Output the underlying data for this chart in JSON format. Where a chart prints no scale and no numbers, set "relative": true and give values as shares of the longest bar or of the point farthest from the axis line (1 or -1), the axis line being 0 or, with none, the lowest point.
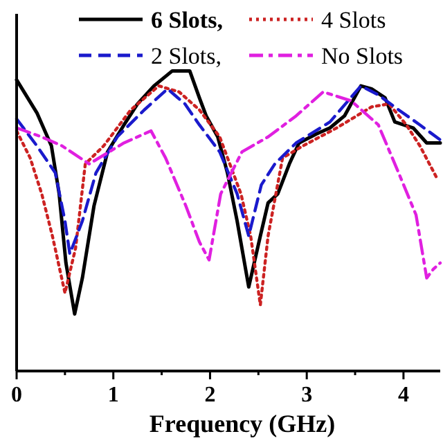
{
  "chart_data": {
    "type": "line",
    "xlabel": "Frequency (GHz)",
    "relative": true,
    "xlim": [
      0,
      4.38
    ],
    "xticks": [
      0,
      1,
      2,
      3,
      4
    ],
    "legend": "top",
    "grid": false,
    "series": [
      {
        "name": "6 Slots,",
        "color": "#000000",
        "line_style": "solid",
        "x": [
          0,
          0.21,
          0.36,
          0.44,
          0.51,
          0.6,
          0.68,
          0.8,
          0.94,
          1.11,
          1.25,
          1.42,
          1.61,
          1.79,
          1.89,
          1.96,
          2.08,
          2.18,
          2.28,
          2.4,
          2.52,
          2.6,
          2.7,
          2.82,
          2.92,
          3.1,
          3.24,
          3.39,
          3.56,
          3.67,
          3.81,
          3.91,
          4.1,
          4.24,
          4.38
        ],
        "values": [
          0.97,
          0.86,
          0.75,
          0.59,
          0.36,
          0.19,
          0.31,
          0.55,
          0.73,
          0.82,
          0.89,
          0.95,
          1.0,
          1.0,
          0.91,
          0.85,
          0.78,
          0.66,
          0.5,
          0.28,
          0.45,
          0.56,
          0.59,
          0.69,
          0.76,
          0.79,
          0.81,
          0.85,
          0.95,
          0.94,
          0.91,
          0.83,
          0.81,
          0.76,
          0.76
        ]
      },
      {
        "name": "4 Slots",
        "color": "#cc2222",
        "line_style": "dotted",
        "x": [
          0,
          0.14,
          0.26,
          0.37,
          0.5,
          0.61,
          0.71,
          0.9,
          1.18,
          1.47,
          1.68,
          1.89,
          2.1,
          2.32,
          2.42,
          2.52,
          2.6,
          2.75,
          2.96,
          3.31,
          3.67,
          3.85,
          4.03,
          4.17,
          4.35
        ],
        "values": [
          0.8,
          0.71,
          0.59,
          0.45,
          0.26,
          0.41,
          0.69,
          0.75,
          0.87,
          0.95,
          0.93,
          0.87,
          0.78,
          0.59,
          0.45,
          0.22,
          0.45,
          0.71,
          0.75,
          0.81,
          0.88,
          0.89,
          0.82,
          0.75,
          0.64
        ]
      },
      {
        "name": "2 Slots,",
        "color": "#1a1acc",
        "line_style": "dashed",
        "x": [
          0,
          0.21,
          0.4,
          0.5,
          0.55,
          0.68,
          0.82,
          1.04,
          1.32,
          1.56,
          1.74,
          1.89,
          2.1,
          2.28,
          2.4,
          2.53,
          2.67,
          2.89,
          3.24,
          3.56,
          3.74,
          3.95,
          4.17,
          4.38
        ],
        "values": [
          0.84,
          0.75,
          0.66,
          0.5,
          0.39,
          0.5,
          0.66,
          0.78,
          0.87,
          0.94,
          0.89,
          0.82,
          0.73,
          0.59,
          0.45,
          0.62,
          0.69,
          0.76,
          0.83,
          0.95,
          0.92,
          0.87,
          0.82,
          0.77
        ]
      },
      {
        "name": "No Slots",
        "color": "#e020e0",
        "line_style": "dashdot",
        "x": [
          0,
          0.26,
          0.47,
          0.75,
          1.11,
          1.39,
          1.54,
          1.75,
          1.89,
          1.99,
          2.11,
          2.33,
          2.6,
          2.89,
          3.17,
          3.46,
          3.74,
          3.95,
          4.13,
          4.24,
          4.31,
          4.38
        ],
        "values": [
          0.81,
          0.78,
          0.75,
          0.69,
          0.76,
          0.8,
          0.71,
          0.55,
          0.43,
          0.37,
          0.59,
          0.73,
          0.78,
          0.85,
          0.93,
          0.9,
          0.82,
          0.66,
          0.52,
          0.31,
          0.34,
          0.36
        ]
      }
    ]
  }
}
